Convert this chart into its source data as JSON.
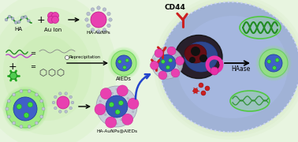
{
  "bg_color": "#e8f5e0",
  "labels": {
    "HA": "HA",
    "Au_Ion": "Au Ion",
    "HA_AuNPs": "HA-AuNPs",
    "AIEDs": "AIEDs",
    "nanoassembly": "HA-AuNPs@AIEDs",
    "reprecipitation": "Reprecipitation",
    "CD44": "CD44",
    "HAase": "HAase"
  },
  "colors": {
    "magenta": "#e840b0",
    "dark_magenta": "#c0208a",
    "green_glow": "#80e870",
    "bright_green": "#50dd50",
    "blue_core": "#3858b8",
    "gray_sphere": "#c0c8d8",
    "red": "#cc2020",
    "cell_fill": "#8898d0",
    "cell_light": "#aabce8",
    "green_star": "#30bb30",
    "nucleus_dark": "#2a1a1a",
    "pink_hot": "#e830a8",
    "arrow_blue": "#2244cc"
  }
}
